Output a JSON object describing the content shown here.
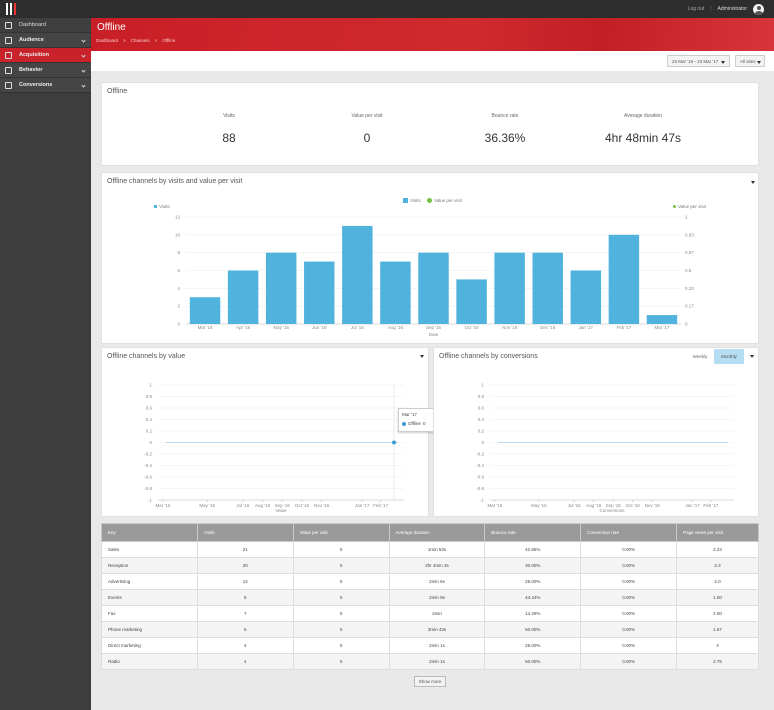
{
  "topbar": {
    "logout": "Log out",
    "separator": "|",
    "user": "Administrator"
  },
  "sidebar": {
    "items": [
      {
        "label": "Dashboard"
      },
      {
        "label": "Audience"
      },
      {
        "label": "Acquisition"
      },
      {
        "label": "Behavior"
      },
      {
        "label": "Conversions"
      }
    ]
  },
  "header": {
    "title": "Offline",
    "breadcrumbs": [
      "Dashboard",
      ">",
      "Channels",
      ">",
      "Offline"
    ]
  },
  "toolbar": {
    "date_range": "23 Mar '16 - 23 Mar '17",
    "filter": "All sites"
  },
  "summary": {
    "title": "Offline",
    "kpis": [
      {
        "label": "Visits",
        "value": "88"
      },
      {
        "label": "Value per visit",
        "value": "0"
      },
      {
        "label": "Bounce rate",
        "value": "36.36%"
      },
      {
        "label": "Average duration",
        "value": "4hr 48min 47s"
      }
    ]
  },
  "chart_data": [
    {
      "type": "bar",
      "title": "Offline channels by visits and value per visit",
      "xlabel": "Date",
      "legend": [
        "Visits",
        "Value per visit"
      ],
      "axis_left_label": "Visits",
      "axis_right_label": "Value per visit",
      "categories": [
        "Mar '16",
        "Apr '16",
        "May '16",
        "Jun '16",
        "Jul '16",
        "Aug '16",
        "Sep '16",
        "Oct '16",
        "Nov '16",
        "Dec '16",
        "Jan '17",
        "Feb '17",
        "Mar '17"
      ],
      "series": [
        {
          "name": "Visits",
          "values": [
            3,
            6,
            8,
            7,
            11,
            7,
            8,
            5,
            8,
            8,
            6,
            10,
            1
          ]
        }
      ],
      "yticks_left": [
        "0",
        "2",
        "4",
        "6",
        "8",
        "10",
        "12"
      ],
      "yticks_right": [
        "0",
        "0.17",
        "0.33",
        "0.5",
        "0.67",
        "0.83",
        "1"
      ],
      "ylim": [
        0,
        12
      ],
      "colors": {
        "visits": "#4fb3de",
        "value": "#7ac143"
      }
    },
    {
      "type": "line",
      "title": "Offline channels by value",
      "xlabel": "Value",
      "categories": [
        "Mar '16",
        "May '16",
        "Jul '16",
        "Aug '16",
        "Sep '16",
        "Oct '16",
        "Nov '16",
        "Jan '17",
        "Feb '17"
      ],
      "series": [
        {
          "name": "Offline",
          "values": [
            0,
            0,
            0,
            0,
            0,
            0,
            0,
            0,
            0
          ]
        }
      ],
      "yticks": [
        "-1",
        "-0.8",
        "-0.6",
        "-0.4",
        "-0.2",
        "0",
        "0.2",
        "0.4",
        "0.6",
        "0.8",
        "1"
      ],
      "ylim": [
        -1,
        1
      ],
      "tooltip": {
        "title": "Mar '17",
        "series": "Offline",
        "value": "0"
      }
    },
    {
      "type": "line",
      "title": "Offline channels by conversions",
      "xlabel": "Conversions",
      "categories": [
        "Mar '16",
        "May '16",
        "Jul '16",
        "Aug '16",
        "Sep '16",
        "Oct '16",
        "Nov '16",
        "Jan '17",
        "Feb '17"
      ],
      "series": [
        {
          "name": "Offline",
          "values": [
            0,
            0,
            0,
            0,
            0,
            0,
            0,
            0,
            0
          ]
        }
      ],
      "yticks": [
        "-1",
        "-0.8",
        "-0.6",
        "-0.4",
        "-0.2",
        "0",
        "0.2",
        "0.4",
        "0.6",
        "0.8",
        "1"
      ],
      "ylim": [
        -1,
        1
      ]
    }
  ],
  "conversions_toggle": {
    "weekly": "Weekly",
    "monthly": "Monthly"
  },
  "table": {
    "headers": [
      "Key",
      "Visits",
      "Value per visit",
      "Average duration",
      "Bounce rate",
      "Conversion rate",
      "Page views per visit"
    ],
    "rows": [
      [
        "Sales",
        "21",
        "0",
        "1min 53s",
        "42.86%",
        "0.00%",
        "2.23"
      ],
      [
        "Reception",
        "20",
        "0",
        "2hr 4min 3s",
        "30.00%",
        "0.00%",
        "2.3"
      ],
      [
        "Advertising",
        "12",
        "0",
        "2min 6s",
        "25.00%",
        "0.00%",
        "2.0"
      ],
      [
        "Events",
        "8",
        "0",
        "2min 9s",
        "44.44%",
        "0.00%",
        "1.00"
      ],
      [
        "Fax",
        "7",
        "0",
        "2min",
        "14.29%",
        "0.00%",
        "2.00"
      ],
      [
        "Phone marketing",
        "6",
        "0",
        "3min 43s",
        "50.00%",
        "0.00%",
        "1.67"
      ],
      [
        "Direct marketing",
        "4",
        "0",
        "2min 1s",
        "25.00%",
        "0.00%",
        "4"
      ],
      [
        "Radio",
        "4",
        "0",
        "2min 1s",
        "50.00%",
        "0.00%",
        "2.75"
      ]
    ]
  },
  "show_more": "Show more"
}
